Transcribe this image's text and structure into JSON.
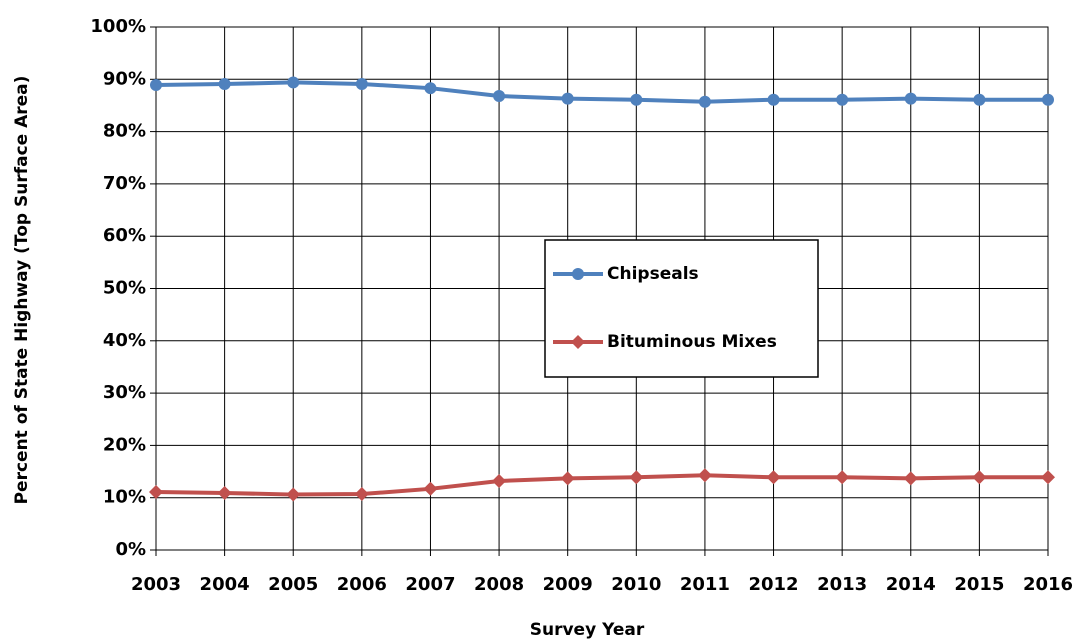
{
  "chart_data": {
    "type": "line",
    "x_label": "Survey  Year",
    "y_label": "Percent  of State Highway  (Top Surface Area)",
    "x": [
      2003,
      2004,
      2005,
      2006,
      2007,
      2008,
      2009,
      2010,
      2011,
      2012,
      2013,
      2014,
      2015,
      2016
    ],
    "xlim": [
      2003,
      2016
    ],
    "xticks": [
      2003,
      2004,
      2005,
      2006,
      2007,
      2008,
      2009,
      2010,
      2011,
      2012,
      2013,
      2014,
      2015,
      2016
    ],
    "ylim": [
      0,
      100
    ],
    "yticks": [
      {
        "value": 0,
        "label": "0%"
      },
      {
        "value": 10,
        "label": "10%"
      },
      {
        "value": 20,
        "label": "20%"
      },
      {
        "value": 30,
        "label": "30%"
      },
      {
        "value": 40,
        "label": "40%"
      },
      {
        "value": 50,
        "label": "50%"
      },
      {
        "value": 60,
        "label": "60%"
      },
      {
        "value": 70,
        "label": "70%"
      },
      {
        "value": 80,
        "label": "80%"
      },
      {
        "value": 90,
        "label": "90%"
      },
      {
        "value": 100,
        "label": "100%"
      }
    ],
    "grid": true,
    "legend": "center",
    "series": [
      {
        "name": "Chipseals",
        "color": "#4f81bd",
        "marker": "circle",
        "values": [
          88.9,
          89.1,
          89.4,
          89.1,
          88.3,
          86.8,
          86.3,
          86.1,
          85.7,
          86.1,
          86.1,
          86.3,
          86.1,
          86.1
        ]
      },
      {
        "name": "Bituminous Mixes",
        "color": "#c0504d",
        "marker": "diamond",
        "values": [
          11.1,
          10.9,
          10.6,
          10.7,
          11.7,
          13.2,
          13.7,
          13.9,
          14.3,
          13.9,
          13.9,
          13.7,
          13.9,
          13.9
        ]
      }
    ]
  }
}
